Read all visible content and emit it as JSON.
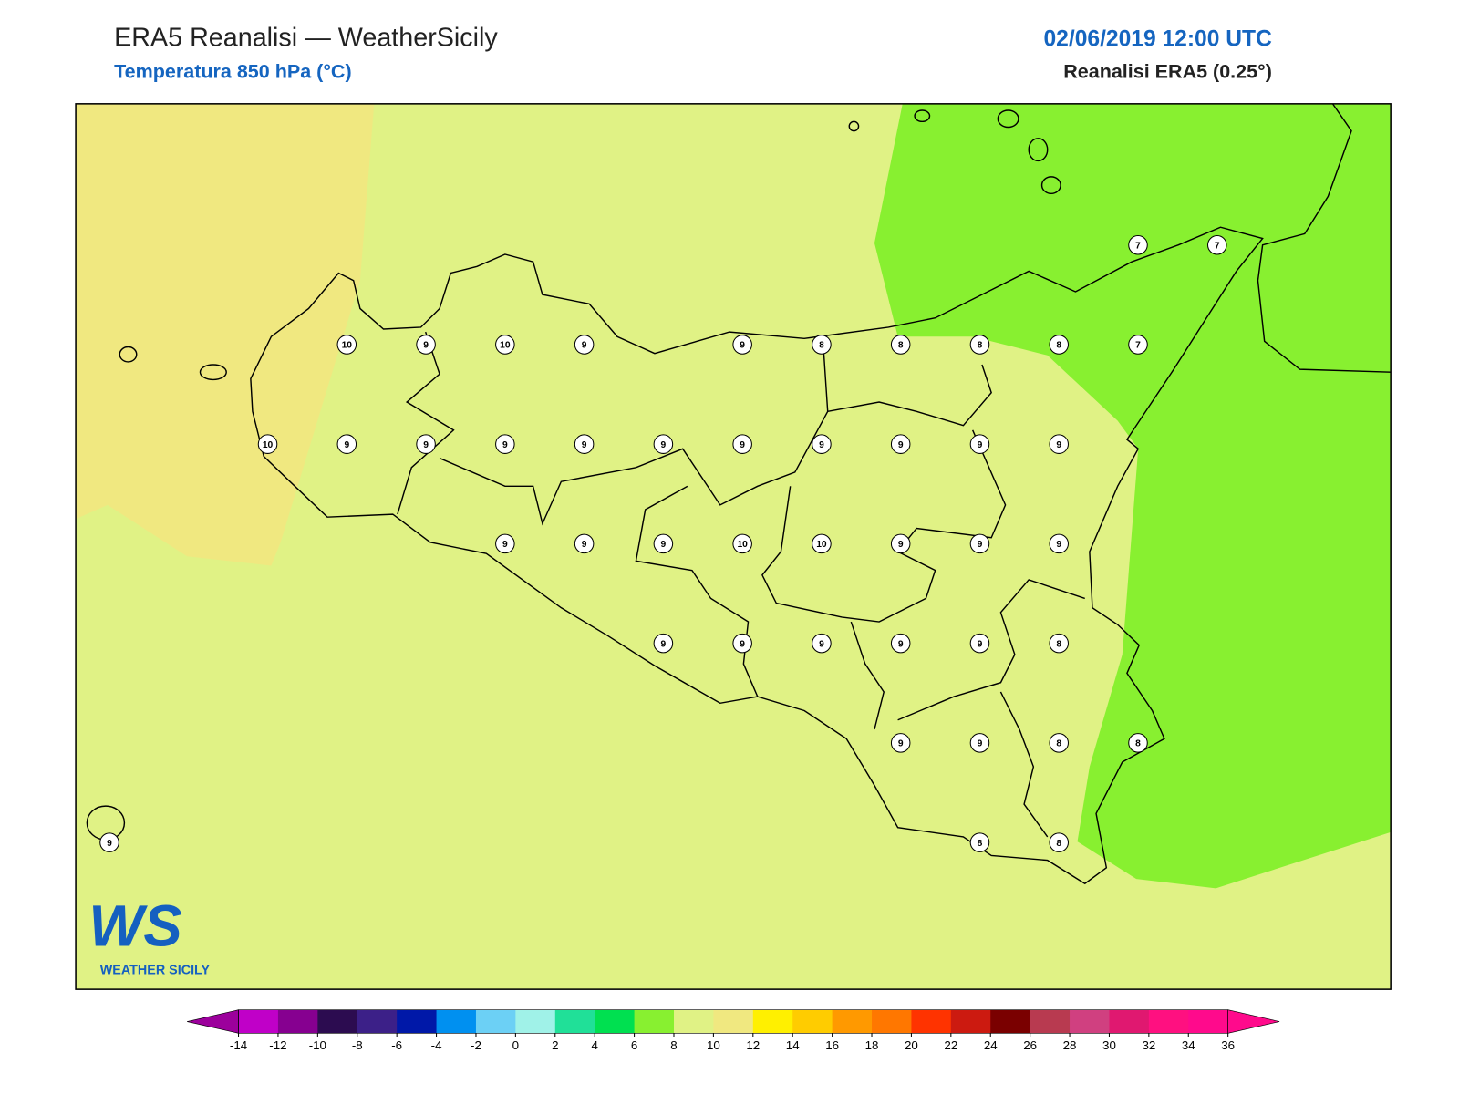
{
  "header": {
    "title": "ERA5 Reanalisi — WeatherSicily",
    "subtitle": "Temperatura 850 hPa (°C)",
    "datetime": "02/06/2019 12:00 UTC",
    "source": "Reanalisi ERA5 (0.25°)"
  },
  "stations": [
    [
      null,
      null,
      null,
      null,
      null,
      null,
      null,
      null,
      null,
      null,
      null,
      null,
      null,
      7,
      7
    ],
    [
      null,
      null,
      null,
      10,
      9,
      10,
      9,
      null,
      9,
      8,
      8,
      8,
      8,
      7,
      null
    ],
    [
      null,
      null,
      10,
      9,
      9,
      9,
      9,
      9,
      9,
      9,
      9,
      9,
      9,
      null,
      null
    ],
    [
      null,
      null,
      null,
      null,
      null,
      9,
      9,
      9,
      10,
      10,
      9,
      9,
      9,
      null,
      null
    ],
    [
      null,
      null,
      null,
      null,
      null,
      null,
      null,
      9,
      9,
      9,
      9,
      9,
      8,
      null,
      null
    ],
    [
      null,
      null,
      null,
      null,
      null,
      null,
      null,
      null,
      null,
      null,
      9,
      9,
      8,
      8,
      null
    ],
    [
      9,
      null,
      null,
      null,
      null,
      null,
      null,
      null,
      null,
      null,
      null,
      8,
      8,
      null,
      null
    ]
  ],
  "colorbar": {
    "ticks": [
      -14,
      -12,
      -10,
      -8,
      -6,
      -4,
      -2,
      0,
      2,
      4,
      6,
      8,
      10,
      12,
      14,
      16,
      18,
      20,
      22,
      24,
      26,
      28,
      30,
      32,
      34,
      36
    ],
    "colors": [
      "#c000c8",
      "#860090",
      "#2c0c50",
      "#3c2088",
      "#0018a8",
      "#0090f0",
      "#6cd0f5",
      "#a0f2e8",
      "#20e098",
      "#00e050",
      "#88f030",
      "#e0f285",
      "#f0e880",
      "#fff000",
      "#ffcc00",
      "#ff9900",
      "#ff7700",
      "#ff3300",
      "#cc1a10",
      "#7a0000",
      "#b83a50",
      "#d04080",
      "#e01870",
      "#ff1080",
      "#ff0a8c"
    ],
    "extend_colors": [
      "#9c009c",
      "#ff0a8c"
    ]
  },
  "logo": {
    "mark": "WS",
    "text": "WEATHER SICILY"
  }
}
